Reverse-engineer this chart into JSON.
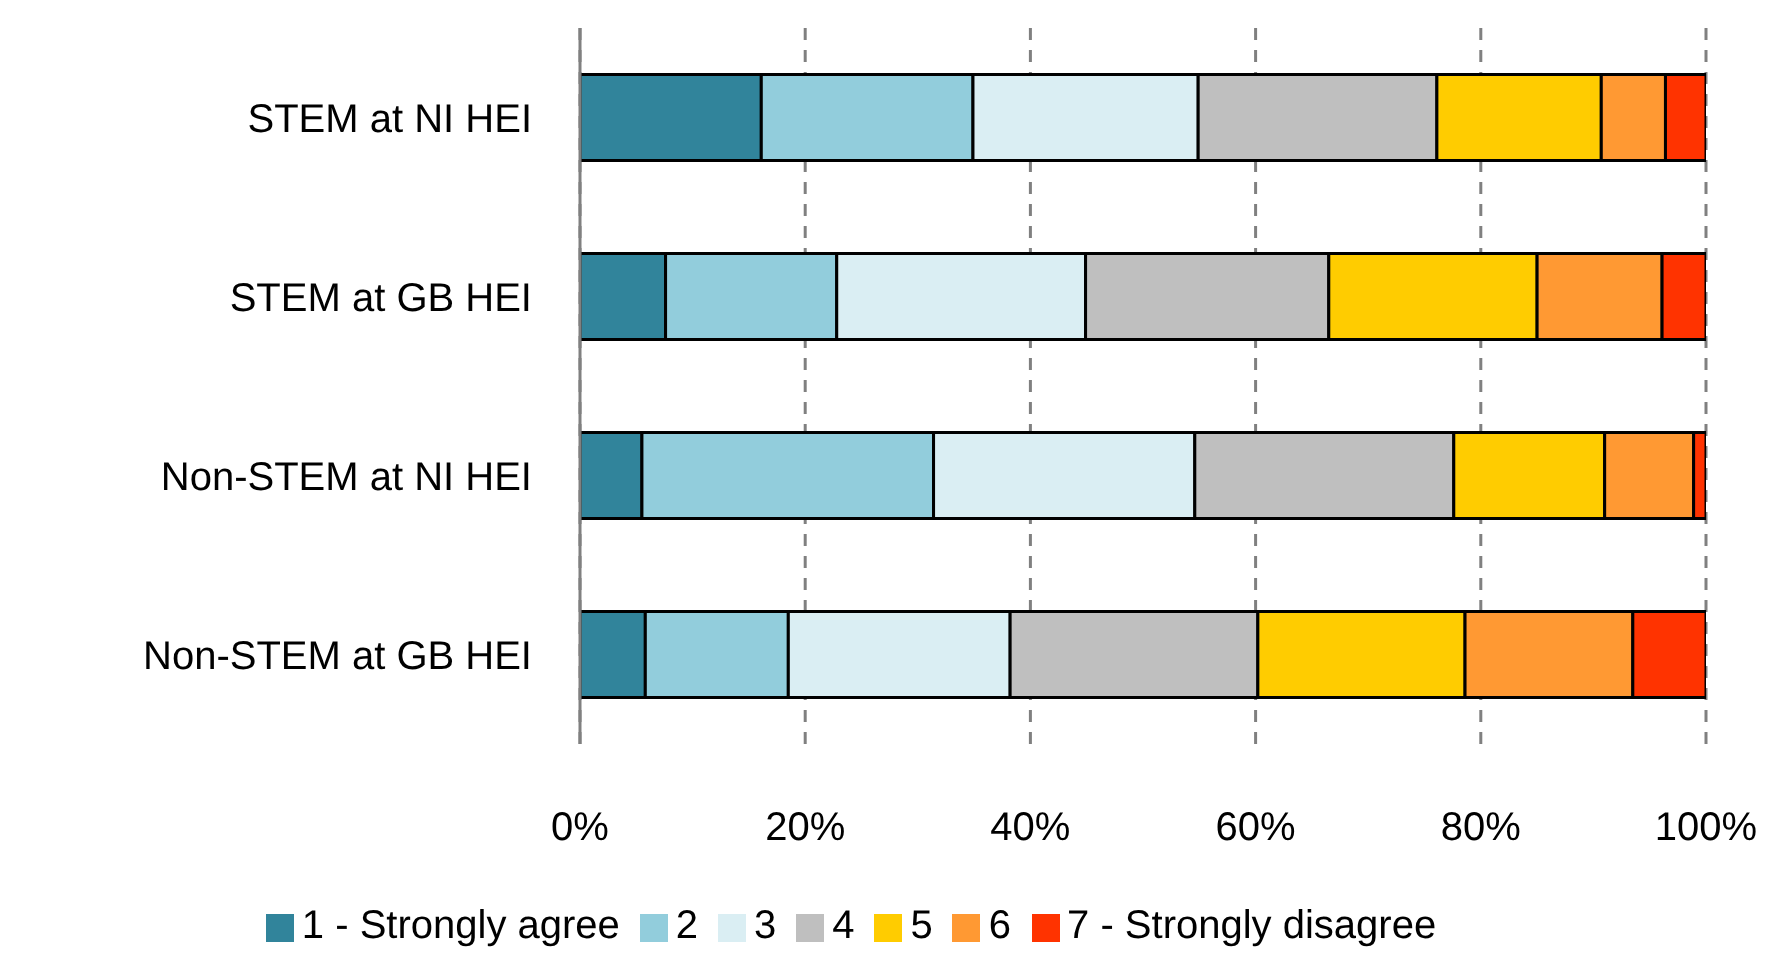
{
  "chart_data": {
    "type": "bar",
    "orientation": "horizontal",
    "stacked": true,
    "categories": [
      "STEM at NI HEI",
      "STEM at GB HEI",
      "Non-STEM at NI HEI",
      "Non-STEM at GB HEI"
    ],
    "series": [
      {
        "name": "1 - Strongly agree",
        "color": "#31849b",
        "values": [
          16.1,
          7.6,
          5.5,
          5.8
        ]
      },
      {
        "name": "2",
        "color": "#92cddc",
        "values": [
          18.8,
          15.2,
          25.9,
          12.7
        ]
      },
      {
        "name": "3",
        "color": "#daeef3",
        "values": [
          20.0,
          22.1,
          23.2,
          19.7
        ]
      },
      {
        "name": "4",
        "color": "#bfbfbf",
        "values": [
          21.2,
          21.6,
          23.0,
          22.0
        ]
      },
      {
        "name": "5",
        "color": "#ffcc00",
        "values": [
          14.6,
          18.5,
          13.4,
          18.4
        ]
      },
      {
        "name": "6",
        "color": "#ff9933",
        "values": [
          5.7,
          11.1,
          7.9,
          14.9
        ]
      },
      {
        "name": "7 - Strongly disagree",
        "color": "#ff3300",
        "values": [
          3.6,
          3.9,
          1.1,
          6.5
        ]
      }
    ],
    "xlim": [
      0,
      100
    ],
    "xticks": [
      {
        "value": 0,
        "label": "0%"
      },
      {
        "value": 20,
        "label": "20%"
      },
      {
        "value": 40,
        "label": "40%"
      },
      {
        "value": 60,
        "label": "60%"
      },
      {
        "value": 80,
        "label": "80%"
      },
      {
        "value": 100,
        "label": "100%"
      }
    ],
    "grid": "x",
    "legend": "bottom"
  }
}
